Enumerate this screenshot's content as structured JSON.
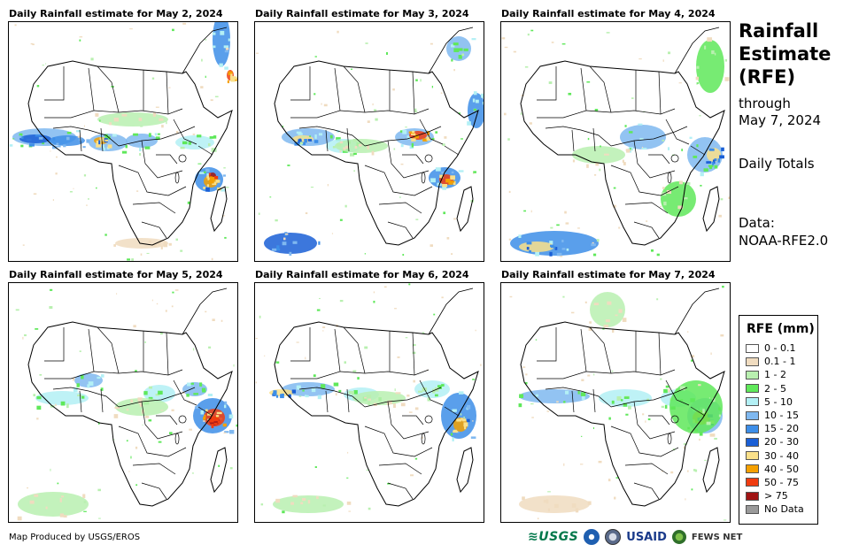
{
  "panels": [
    {
      "title": "Daily Rainfall estimate for May 2, 2024"
    },
    {
      "title": "Daily Rainfall estimate for May 3, 2024"
    },
    {
      "title": "Daily Rainfall estimate for May 4, 2024"
    },
    {
      "title": "Daily Rainfall estimate for May 5, 2024"
    },
    {
      "title": "Daily Rainfall estimate for May 6, 2024"
    },
    {
      "title": "Daily Rainfall estimate for May 7, 2024"
    }
  ],
  "sidebar": {
    "title_line1": "Rainfall",
    "title_line2": "Estimate",
    "title_line3": "(RFE)",
    "through_label": "through",
    "through_date": "May 7, 2024",
    "daily_totals": "Daily Totals",
    "data_label": "Data:",
    "data_source": "NOAA-RFE2.0"
  },
  "legend": {
    "title": "RFE (mm)",
    "items": [
      {
        "label": "0 - 0.1",
        "color": "#ffffff"
      },
      {
        "label": "0.1 - 1",
        "color": "#f0dcc0"
      },
      {
        "label": "1 - 2",
        "color": "#b9f0b0"
      },
      {
        "label": "2 - 5",
        "color": "#5fe85a"
      },
      {
        "label": "5 - 10",
        "color": "#b3f0f5"
      },
      {
        "label": "10 - 15",
        "color": "#7fb8f0"
      },
      {
        "label": "15 - 20",
        "color": "#3d8ee8"
      },
      {
        "label": "20 - 30",
        "color": "#1a5fd6"
      },
      {
        "label": "30 - 40",
        "color": "#fae08a"
      },
      {
        "label": "40 - 50",
        "color": "#f5a000"
      },
      {
        "label": "50 - 75",
        "color": "#f03c10"
      },
      {
        "label": "> 75",
        "color": "#a01414"
      },
      {
        "label": "No Data",
        "color": "#9a9a9a"
      }
    ]
  },
  "footer": {
    "credit": "Map Produced by USGS/EROS",
    "logo_usgs": "≋USGS",
    "logo_usaid": "USAID",
    "logo_fews": "FEWS NET"
  }
}
